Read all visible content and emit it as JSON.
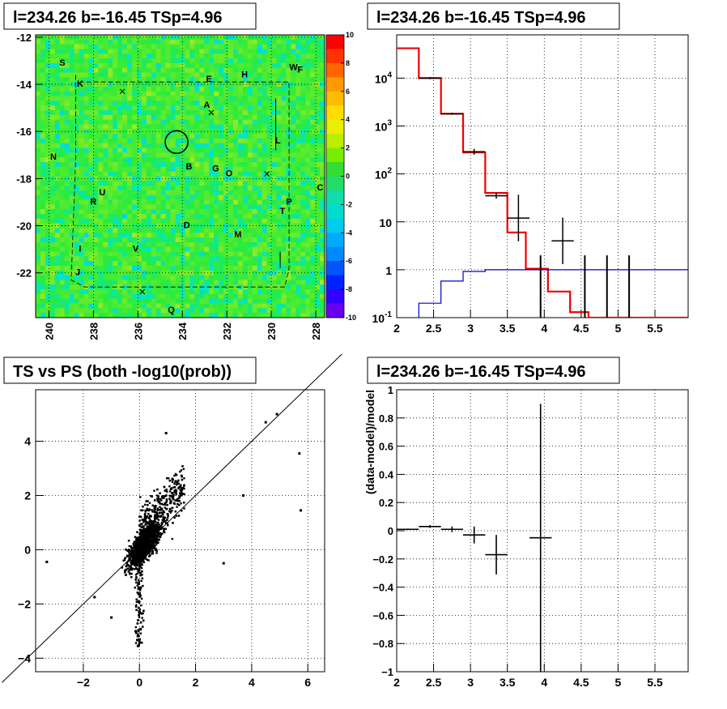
{
  "panels": {
    "skymap": {
      "title": "l=234.26 b=-16.45 TSp=4.96"
    },
    "spectrum": {
      "title": "l=234.26 b=-16.45 TSp=4.96"
    },
    "scatter": {
      "title": "TS vs PS (both -log10(prob))"
    },
    "residual": {
      "title": "l=234.26 b=-16.45 TSp=4.96"
    }
  },
  "chart_data": [
    {
      "type": "heatmap",
      "title": "l=234.26 b=-16.45 TSp=4.96",
      "xlim": [
        240.6,
        227.6
      ],
      "ylim": [
        -23.9,
        -11.9
      ],
      "x_ticks": [
        "240",
        "238",
        "236",
        "234",
        "232",
        "230",
        "228"
      ],
      "y_ticks": [
        "-12",
        "-14",
        "-16",
        "-18",
        "-20",
        "-22"
      ],
      "colorbar": {
        "zlim": [
          -10,
          10
        ],
        "ticks": [
          "10",
          "8",
          "6",
          "4",
          "2",
          "0",
          "-2",
          "-4",
          "-6",
          "-8",
          "-10"
        ]
      },
      "labels": [
        {
          "t": "S",
          "x": 239.4,
          "y": -13.2
        },
        {
          "t": "K",
          "x": 238.6,
          "y": -14.1
        },
        {
          "t": "E",
          "x": 232.8,
          "y": -13.9
        },
        {
          "t": "H",
          "x": 231.2,
          "y": -13.7
        },
        {
          "t": "W",
          "x": 229.0,
          "y": -13.4
        },
        {
          "t": "F",
          "x": 228.7,
          "y": -13.5
        },
        {
          "t": "A",
          "x": 232.9,
          "y": -15.0
        },
        {
          "t": "L",
          "x": 229.7,
          "y": -16.5
        },
        {
          "t": "N",
          "x": 239.8,
          "y": -17.2
        },
        {
          "t": "B",
          "x": 233.7,
          "y": -17.6
        },
        {
          "t": "G",
          "x": 232.5,
          "y": -17.7
        },
        {
          "t": "O",
          "x": 231.9,
          "y": -17.9
        },
        {
          "t": "C",
          "x": 227.8,
          "y": -18.5
        },
        {
          "t": "U",
          "x": 237.6,
          "y": -18.7
        },
        {
          "t": "R",
          "x": 238.0,
          "y": -19.1
        },
        {
          "t": "P",
          "x": 229.2,
          "y": -19.1
        },
        {
          "t": "T",
          "x": 229.5,
          "y": -19.5
        },
        {
          "t": "D",
          "x": 233.8,
          "y": -20.1
        },
        {
          "t": "M",
          "x": 231.5,
          "y": -20.5
        },
        {
          "t": "I",
          "x": 238.6,
          "y": -21.1
        },
        {
          "t": "V",
          "x": 236.1,
          "y": -21.1
        },
        {
          "t": "J",
          "x": 238.7,
          "y": -22.1
        },
        {
          "t": "Q",
          "x": 234.5,
          "y": -23.7
        }
      ],
      "circle": {
        "x": 234.26,
        "y": -16.45
      }
    },
    {
      "type": "line",
      "title": "l=234.26 b=-16.45 TSp=4.96",
      "xlim": [
        2.0,
        5.95
      ],
      "ylim": [
        0.1,
        80000
      ],
      "y_scale": "log",
      "x_ticks": [
        2,
        2.5,
        3,
        3.5,
        4,
        4.5,
        5,
        5.5
      ],
      "x_tick_labels": [
        "2",
        "2.5",
        "3",
        "3.5",
        "4",
        "4.5",
        "5",
        "5.5"
      ],
      "y_ticks": [
        0.1,
        1,
        10,
        100,
        1000,
        10000
      ],
      "y_tick_labels": [
        "10^-1",
        "1",
        "10",
        "10^2",
        "10^3",
        "10^4"
      ],
      "grid": true,
      "series": [
        {
          "color": "#ee0000",
          "bins": [
            2.0,
            2.3,
            2.6,
            2.9,
            3.2,
            3.5,
            3.75,
            4.05,
            4.35,
            4.6,
            4.9,
            5.95
          ],
          "values": [
            42000,
            10000,
            1800,
            280,
            40,
            6,
            1.05,
            0.35,
            0.13,
            0.1,
            0.1
          ]
        },
        {
          "color": "#0000cc",
          "bins": [
            2.0,
            2.3,
            2.6,
            2.9,
            3.2,
            3.5,
            3.75,
            4.05,
            4.35,
            4.6,
            4.9,
            5.95
          ],
          "values": [
            0.05,
            0.2,
            0.58,
            0.92,
            1.0,
            1.0,
            1.0,
            1.0,
            1.0,
            1.0,
            1.0
          ]
        }
      ],
      "data_points": [
        {
          "x": 2.45,
          "y": 10000
        },
        {
          "x": 2.75,
          "y": 1800
        },
        {
          "x": 3.05,
          "y": 290
        },
        {
          "x": 3.35,
          "y": 35
        },
        {
          "x": 3.65,
          "y": 12
        },
        {
          "x": 4.25,
          "y": 4
        },
        {
          "x": 3.95,
          "y": 1,
          "lo": 0.1
        },
        {
          "x": 4.55,
          "y": 1,
          "lo": 0.1
        },
        {
          "x": 4.85,
          "y": 1,
          "lo": 0.1
        },
        {
          "x": 5.15,
          "y": 1,
          "lo": 0.1
        }
      ]
    },
    {
      "type": "scatter",
      "title": "TS vs PS (both -log10(prob))",
      "xlim": [
        -3.7,
        6.6
      ],
      "ylim": [
        -4.5,
        5.9
      ],
      "x_ticks": [
        -2,
        0,
        2,
        4,
        6
      ],
      "x_tick_labels": [
        "−2",
        "0",
        "2",
        "4",
        "6"
      ],
      "y_ticks": [
        -4,
        -2,
        0,
        2,
        4
      ],
      "y_tick_labels": [
        "−4",
        "−2",
        "0",
        "2",
        "4"
      ],
      "grid": true,
      "reference_line": "y = x",
      "points": [
        [
          4.5,
          4.7
        ],
        [
          4.9,
          5.0
        ],
        [
          5.7,
          3.55
        ],
        [
          5.75,
          1.45
        ],
        [
          3.7,
          2.0
        ],
        [
          -3.3,
          -0.45
        ],
        [
          -1.6,
          -1.75
        ],
        [
          -1.0,
          -2.5
        ],
        [
          0.95,
          4.3
        ],
        [
          3.0,
          -0.5
        ]
      ]
    },
    {
      "type": "scatter",
      "title": "l=234.26 b=-16.45 TSp=4.96",
      "ylabel": "(data-model)/model",
      "xlim": [
        2.0,
        5.95
      ],
      "ylim": [
        -1,
        1
      ],
      "x_ticks": [
        2,
        2.5,
        3,
        3.5,
        4,
        4.5,
        5,
        5.5
      ],
      "x_tick_labels": [
        "2",
        "2.5",
        "3",
        "3.5",
        "4",
        "4.5",
        "5",
        "5.5"
      ],
      "y_ticks": [
        -1,
        -0.8,
        -0.6,
        -0.4,
        -0.2,
        0,
        0.2,
        0.4,
        0.6,
        0.8,
        1
      ],
      "y_tick_labels": [
        "−1",
        "−0.8",
        "−0.6",
        "−0.4",
        "−0.2",
        "0",
        "0.2",
        "0.4",
        "0.6",
        "0.8",
        "1"
      ],
      "grid": true,
      "points": [
        {
          "x": 2.15,
          "y": 0.01,
          "xe": 0.15,
          "ye": 0.005
        },
        {
          "x": 2.45,
          "y": 0.03,
          "xe": 0.15,
          "ye": 0.01
        },
        {
          "x": 2.75,
          "y": 0.01,
          "xe": 0.15,
          "ye": 0.02
        },
        {
          "x": 3.05,
          "y": -0.03,
          "xe": 0.15,
          "ye": 0.06
        },
        {
          "x": 3.35,
          "y": -0.17,
          "xe": 0.15,
          "ye": 0.14
        },
        {
          "x": 3.95,
          "y": -0.05,
          "xe": 0.15,
          "ye": 0.95
        }
      ]
    }
  ]
}
